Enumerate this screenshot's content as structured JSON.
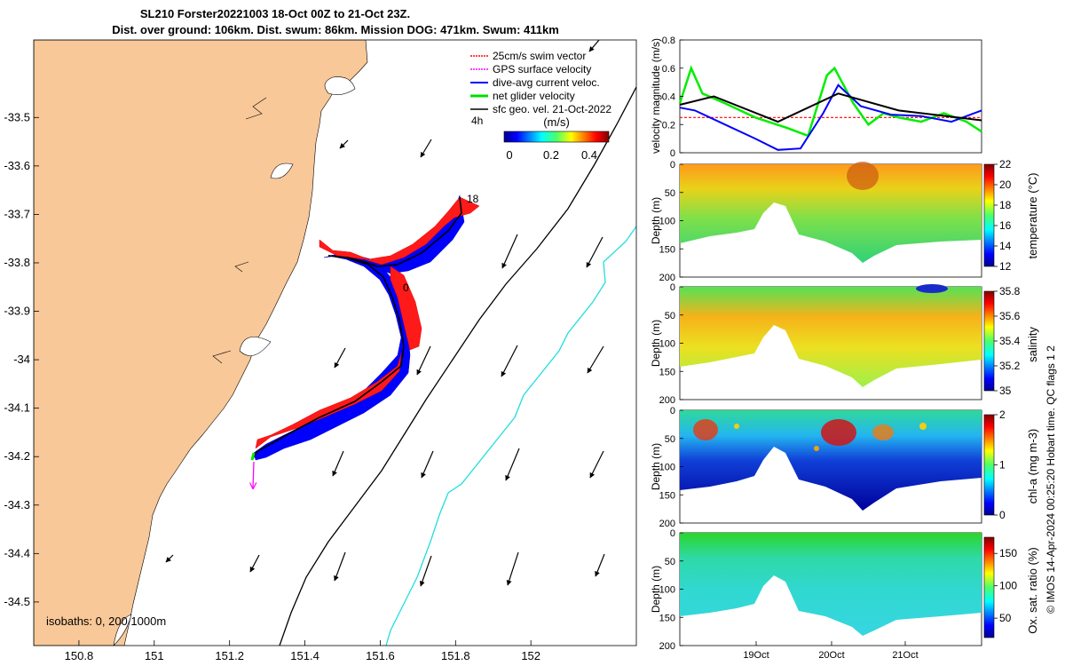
{
  "header": {
    "title_line1": "SL210 Forster20221003 18-Oct 00Z to 21-Oct 23Z.",
    "title_line2": "Dist. over ground: 106km. Dist. swum: 86km. Mission DOG: 471km. Swum: 411km"
  },
  "map": {
    "xticks": [
      150.8,
      151,
      151.2,
      151.4,
      151.6,
      151.8,
      152
    ],
    "yticks": [
      -33.5,
      -33.6,
      -33.7,
      -33.8,
      -33.9,
      -34,
      -34.1,
      -34.2,
      -34.3,
      -34.4,
      -34.5
    ],
    "xlim": [
      150.68,
      152.28
    ],
    "ylim": [
      -34.59,
      -33.34
    ],
    "legend": [
      {
        "label": "25cm/s swim vector",
        "color": "#ff0000"
      },
      {
        "label": "GPS surface velocity",
        "color": "#ff00ff"
      },
      {
        "label": "dive-avg current veloc.",
        "color": "#0000ff"
      },
      {
        "label": "net glider velocity",
        "color": "#00dd00"
      },
      {
        "label": "sfc geo. vel. 21-Oct-2022",
        "color": "#000000"
      }
    ],
    "legend_suffix": "4h",
    "colorbar": {
      "title": "(m/s)",
      "ticks": [
        "0",
        "0.2",
        "0.4"
      ]
    },
    "track_labels": [
      "18",
      "0"
    ],
    "isobath_label": "isobaths: 0, 200  1000m",
    "colors": {
      "land": "#f8c899",
      "isobath_200": "#000000",
      "isobath_1000": "#22dddd"
    }
  },
  "chart_data": [
    {
      "type": "line",
      "ylabel": "velocity magnitude (m/s)",
      "ylim": [
        0,
        0.8
      ],
      "yticks": [
        "0",
        "0.2",
        "0.4",
        "0.6",
        "0.8"
      ],
      "series": [
        {
          "color": "#ff0000",
          "x": [
            0,
            4
          ],
          "values": [
            0.25,
            0.25
          ]
        },
        {
          "color": "#00ee00",
          "x": [
            0,
            0.15,
            0.3,
            0.6,
            1.0,
            1.4,
            1.7,
            1.95,
            2.05,
            2.3,
            2.5,
            2.7,
            2.9,
            3.2,
            3.5,
            3.8,
            4.0
          ],
          "values": [
            0.35,
            0.6,
            0.42,
            0.35,
            0.25,
            0.18,
            0.12,
            0.55,
            0.6,
            0.35,
            0.2,
            0.28,
            0.25,
            0.22,
            0.28,
            0.22,
            0.15
          ]
        },
        {
          "color": "#0000ff",
          "x": [
            0,
            0.2,
            0.6,
            1.0,
            1.3,
            1.6,
            1.9,
            2.1,
            2.4,
            2.8,
            3.2,
            3.6,
            4.0
          ],
          "values": [
            0.32,
            0.3,
            0.2,
            0.1,
            0.02,
            0.03,
            0.28,
            0.48,
            0.33,
            0.27,
            0.26,
            0.22,
            0.3
          ]
        },
        {
          "color": "#000000",
          "x": [
            0,
            0.45,
            1.3,
            2.1,
            2.9,
            4.0
          ],
          "values": [
            0.34,
            0.4,
            0.22,
            0.42,
            0.3,
            0.23
          ]
        }
      ]
    },
    {
      "type": "heatmap",
      "ylabel": "Depth (m)",
      "yticks": [
        "0",
        "50",
        "100",
        "150",
        "200"
      ],
      "ylim": [
        0,
        200
      ],
      "colorbar_label": "temperature (°C)",
      "colorbar_ticks": [
        "12",
        "14",
        "16",
        "18",
        "20",
        "22"
      ],
      "clim": [
        12,
        22
      ]
    },
    {
      "type": "heatmap",
      "ylabel": "Depth (m)",
      "yticks": [
        "0",
        "50",
        "100",
        "150",
        "200"
      ],
      "ylim": [
        0,
        200
      ],
      "colorbar_label": "salinity",
      "colorbar_ticks": [
        "35",
        "35.2",
        "35.4",
        "35.6",
        "35.8"
      ],
      "clim": [
        35,
        35.8
      ]
    },
    {
      "type": "heatmap",
      "ylabel": "Depth (m)",
      "yticks": [
        "0",
        "50",
        "100",
        "150",
        "200"
      ],
      "ylim": [
        0,
        200
      ],
      "colorbar_label": "chl-a (mg m-3)",
      "colorbar_ticks": [
        "0",
        "1",
        "2"
      ],
      "clim": [
        0,
        2
      ]
    },
    {
      "type": "heatmap",
      "ylabel": "Depth (m)",
      "yticks": [
        "0",
        "50",
        "100",
        "150",
        "200"
      ],
      "ylim": [
        0,
        200
      ],
      "colorbar_label": "Ox. sat. ratio (%)",
      "colorbar_ticks": [
        "50",
        "100",
        "150"
      ],
      "clim": [
        20,
        175
      ],
      "xticks": [
        "19Oct",
        "20Oct",
        "21Oct"
      ]
    }
  ],
  "side_note": "© IMOS 14-Apr-2024 00:25:20 Hobart time. QC flags 1  2"
}
